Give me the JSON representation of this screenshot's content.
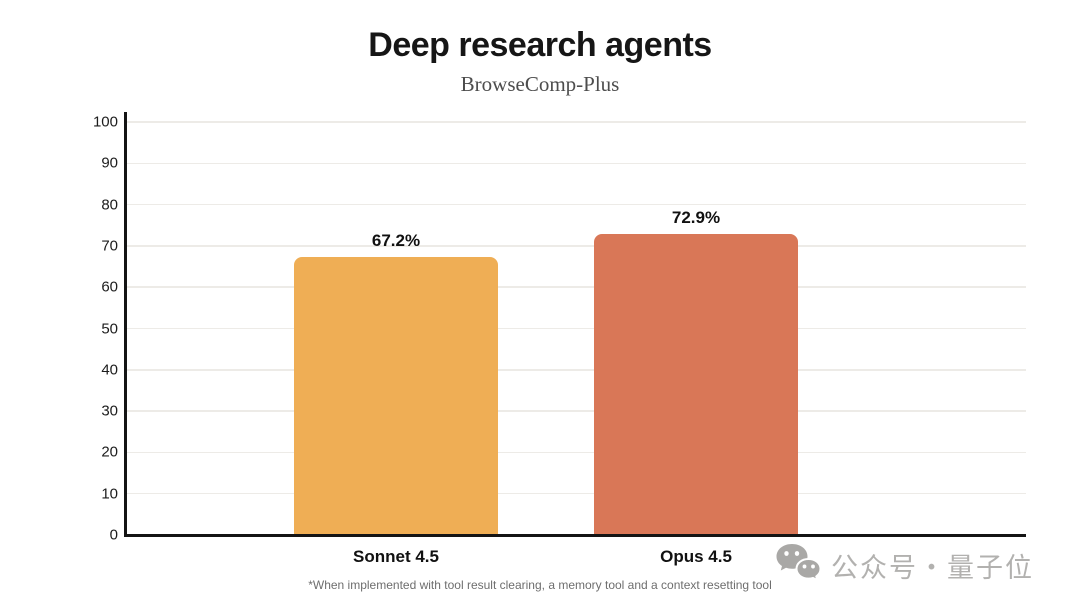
{
  "header": {
    "title": "Deep research agents",
    "subtitle": "BrowseComp-Plus"
  },
  "footnote": "*When implemented with tool result clearing, a memory tool and a context resetting tool",
  "watermark": {
    "icon": "wechat-icon",
    "text": "公众号・量子位",
    "color": "#b2b1af"
  },
  "chart_data": {
    "type": "bar",
    "title": "Deep research agents",
    "subtitle": "BrowseComp-Plus",
    "categories": [
      "Sonnet 4.5",
      "Opus 4.5"
    ],
    "values": [
      67.2,
      72.9
    ],
    "value_labels": [
      "67.2%",
      "72.9%"
    ],
    "bar_colors": [
      "#EFAE55",
      "#D97757"
    ],
    "ylabel": "",
    "xlabel": "",
    "ylim": [
      0,
      100
    ],
    "yticks": [
      0,
      10,
      20,
      30,
      40,
      50,
      60,
      70,
      80,
      90,
      100
    ],
    "grid": true,
    "gridline_color": "#edebe7",
    "axis_color": "#141414",
    "legend": "none"
  }
}
